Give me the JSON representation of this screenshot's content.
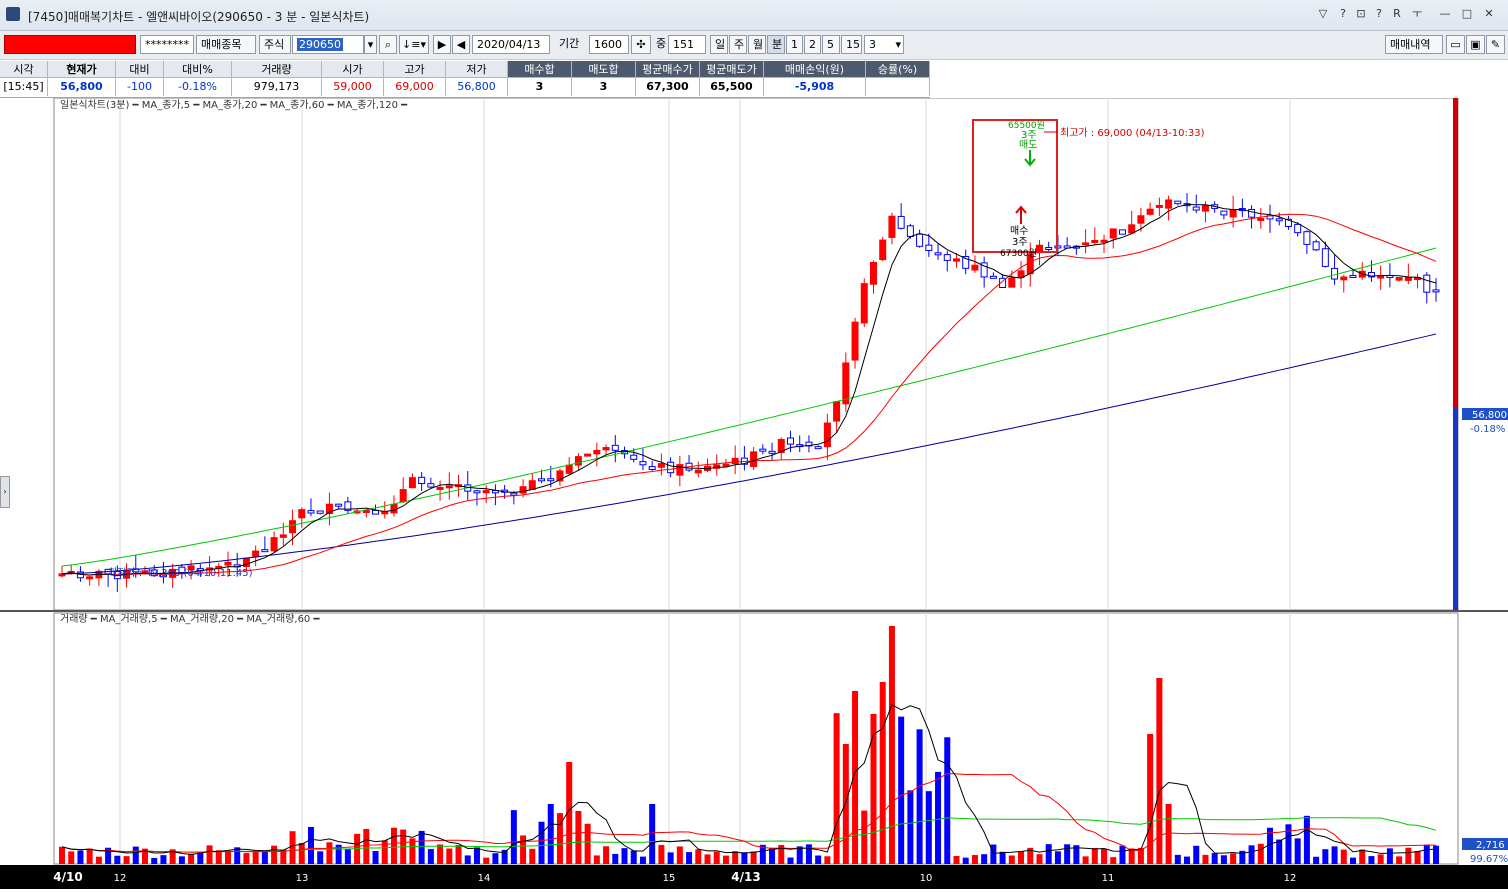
{
  "window": {
    "title": "[7450]매매복기차트 - 엘앤씨바이오(290650 - 3 분 - 일본식차트)",
    "buttons": [
      "▽",
      "?",
      "⊡",
      "?",
      "R",
      "ㅜ",
      "—",
      "□",
      "✕"
    ]
  },
  "toolbar": {
    "password": "********",
    "stock_list_label": "매매종목",
    "market_label": "주식",
    "code": "290650",
    "date": "2020/04/13",
    "period_label": "기간",
    "period_value": "1600",
    "count_label": "중",
    "count_value": "151",
    "timeframes": [
      "일",
      "주",
      "월",
      "분",
      "1",
      "2",
      "5",
      "15"
    ],
    "minute_value": "3",
    "trade_history_label": "매매내역"
  },
  "info": {
    "headers": [
      "시각",
      "현재가",
      "대비",
      "대비%",
      "거래량",
      "시가",
      "고가",
      "저가",
      "매수합",
      "매도합",
      "평균매수가",
      "평균매도가",
      "매매손익(원)",
      "승률(%)"
    ],
    "values": [
      "[15:45]",
      "56,800",
      "-100",
      "-0.18%",
      "979,173",
      "59,000",
      "69,000",
      "56,800",
      "3",
      "3",
      "67,300",
      "65,500",
      "-5,908",
      ""
    ]
  },
  "price_panel": {
    "legend": "일본식차트(3분) ━ MA_종가,5 ━ MA_종가,20 ━ MA_종가,60 ━ MA_종가,120 ━",
    "high_label": "최고가 : 69,000 (04/13-10:33)",
    "low_label": "최저가 : 49,300 (04/10-11:45)",
    "sell_marker": {
      "price": "65500원",
      "qty": "3주",
      "side": "매도"
    },
    "buy_marker": {
      "price": "67300원",
      "qty": "3주",
      "side": "매수"
    },
    "last_price": "56,800",
    "last_change": "-0.18%"
  },
  "volume_panel": {
    "legend": "거래량 ━ MA_거래량,5 ━ MA_거래량,20 ━ MA_거래량,60 ━",
    "last_volume": "2,716",
    "last_ratio": "99.67%"
  },
  "x_axis_labels": [
    "4/10",
    "12",
    "13",
    "14",
    "15",
    "4/13",
    "10",
    "11",
    "12"
  ],
  "colors": {
    "up": "#ff0000",
    "down": "#0000ff",
    "ma5": "#000000",
    "ma20": "#ff0000",
    "ma60": "#00c800",
    "ma120": "#000099",
    "highlight_box": "#e02020"
  },
  "chart_data": [
    {
      "type": "candlestick",
      "title": "일본식차트(3분)",
      "interval": "3분",
      "ylim": [
        49300,
        69000
      ],
      "high": {
        "value": 69000,
        "time": "04/13-10:33"
      },
      "low": {
        "value": 49300,
        "time": "04/10-11:45"
      },
      "series": [
        {
          "name": "MA_종가,5"
        },
        {
          "name": "MA_종가,20"
        },
        {
          "name": "MA_종가,60"
        },
        {
          "name": "MA_종가,120"
        }
      ],
      "last": {
        "value": 56800,
        "change_pct": -0.18
      },
      "trades": [
        {
          "side": "매수",
          "qty": 3,
          "price": 67300
        },
        {
          "side": "매도",
          "qty": 3,
          "price": 65500
        }
      ]
    },
    {
      "type": "bar",
      "title": "거래량",
      "series": [
        {
          "name": "MA_거래량,5"
        },
        {
          "name": "MA_거래량,20"
        },
        {
          "name": "MA_거래량,60"
        }
      ],
      "last": {
        "value": 2716,
        "ratio_pct": 99.67
      }
    }
  ]
}
